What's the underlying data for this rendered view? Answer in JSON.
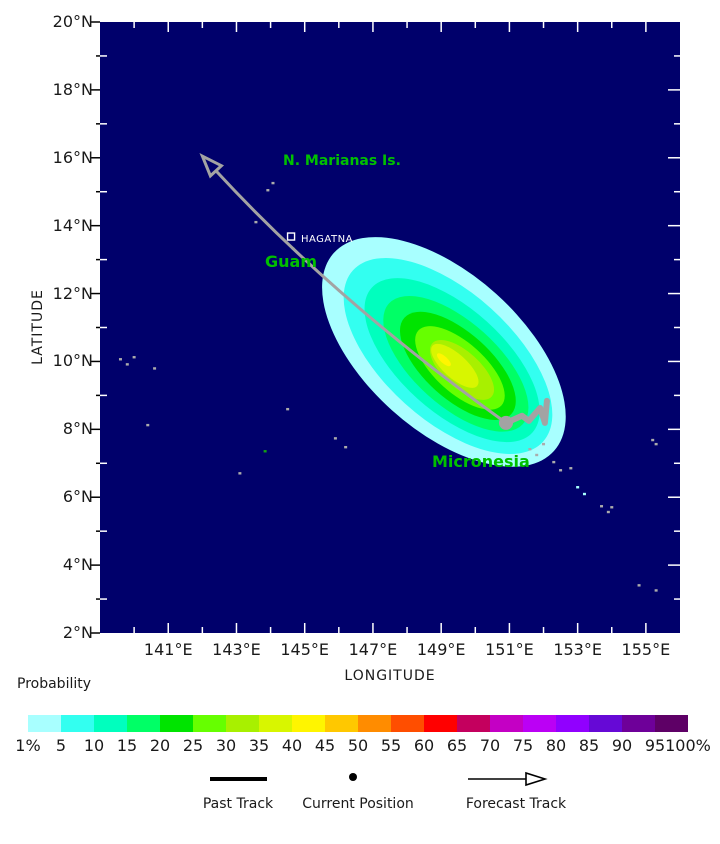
{
  "figure": {
    "background": "#FFFFFF",
    "ocean_color": "#00006B",
    "track_color": "#A3A3A3",
    "place_label_color": "#00C000"
  },
  "axes": {
    "x_label": "LONGITUDE",
    "y_label": "LATITUDE",
    "x_ticks": [
      {
        "v": 141,
        "label": "141°E"
      },
      {
        "v": 143,
        "label": "143°E"
      },
      {
        "v": 145,
        "label": "145°E"
      },
      {
        "v": 147,
        "label": "147°E"
      },
      {
        "v": 149,
        "label": "149°E"
      },
      {
        "v": 151,
        "label": "151°E"
      },
      {
        "v": 153,
        "label": "153°E"
      },
      {
        "v": 155,
        "label": "155°E"
      }
    ],
    "y_ticks": [
      {
        "v": 20,
        "label": "20°N"
      },
      {
        "v": 18,
        "label": "18°N"
      },
      {
        "v": 16,
        "label": "16°N"
      },
      {
        "v": 14,
        "label": "14°N"
      },
      {
        "v": 12,
        "label": "12°N"
      },
      {
        "v": 10,
        "label": "10°N"
      },
      {
        "v": 8,
        "label": "8°N"
      },
      {
        "v": 6,
        "label": "6°N"
      },
      {
        "v": 4,
        "label": "4°N"
      },
      {
        "v": 2,
        "label": "2°N"
      }
    ]
  },
  "map_labels": {
    "marianas": "N. Marianas Is.",
    "guam": "Guam",
    "hagatna": "HAGATNA",
    "micronesia": "Micronesia"
  },
  "colorbar": {
    "title": "Probability",
    "labels": [
      "1%",
      "5",
      "10",
      "15",
      "20",
      "25",
      "30",
      "35",
      "40",
      "45",
      "50",
      "55",
      "60",
      "65",
      "70",
      "75",
      "80",
      "85",
      "90",
      "95",
      "100%"
    ],
    "colors": [
      "#A8FFFF",
      "#33FFF0",
      "#00FFBE",
      "#00FF66",
      "#00E400",
      "#66FF00",
      "#A8F000",
      "#D8F600",
      "#FFF500",
      "#FFC800",
      "#FF8C00",
      "#FF4E00",
      "#FF0000",
      "#C4005E",
      "#C400C4",
      "#BB00F5",
      "#9100FF",
      "#6609D6",
      "#6E0099",
      "#5E0066"
    ]
  },
  "legend": {
    "past_track": "Past Track",
    "current_position": "Current Position",
    "forecast_track": "Forecast Track"
  },
  "chart_data": {
    "type": "heatmap",
    "title": "Tropical cyclone wind probability map (probability contours with past and forecast track)",
    "xlabel": "LONGITUDE",
    "ylabel": "LATITUDE",
    "x_range_deg_east": [
      139,
      156
    ],
    "y_range_deg_north": [
      2,
      20
    ],
    "x_tick_values": [
      141,
      143,
      145,
      147,
      149,
      151,
      153,
      155
    ],
    "y_tick_values": [
      20,
      18,
      16,
      14,
      12,
      10,
      8,
      6,
      4,
      2
    ],
    "grid": "off",
    "legend_position": "bottom",
    "colorbar_percent_levels": [
      1,
      5,
      10,
      15,
      20,
      25,
      30,
      35,
      40,
      45,
      50,
      55,
      60,
      65,
      70,
      75,
      80,
      85,
      90,
      95,
      100
    ],
    "probability_bands": [
      {
        "min_percent": 1,
        "color": "#A8FFFF",
        "center_lon": 149.08,
        "center_lat": 10.28,
        "semi_major_deg": 4.34,
        "semi_minor_deg": 2.29,
        "rotation_deg_cw": 42
      },
      {
        "min_percent": 5,
        "color": "#33FFF0",
        "center_lon": 149.2,
        "center_lat": 10.16,
        "semi_major_deg": 3.75,
        "semi_minor_deg": 1.88,
        "rotation_deg_cw": 42
      },
      {
        "min_percent": 10,
        "color": "#00FFBE",
        "center_lon": 149.32,
        "center_lat": 10.04,
        "semi_major_deg": 3.17,
        "semi_minor_deg": 1.52,
        "rotation_deg_cw": 42
      },
      {
        "min_percent": 15,
        "color": "#00FF66",
        "center_lon": 149.43,
        "center_lat": 9.93,
        "semi_major_deg": 2.64,
        "semi_minor_deg": 1.23,
        "rotation_deg_cw": 42
      },
      {
        "min_percent": 20,
        "color": "#00E400",
        "center_lon": 149.49,
        "center_lat": 9.87,
        "semi_major_deg": 2.11,
        "semi_minor_deg": 0.97,
        "rotation_deg_cw": 42
      },
      {
        "min_percent": 25,
        "color": "#66FF00",
        "center_lon": 149.55,
        "center_lat": 9.81,
        "semi_major_deg": 1.64,
        "semi_minor_deg": 0.73,
        "rotation_deg_cw": 42
      },
      {
        "min_percent": 30,
        "color": "#A8F000",
        "center_lon": 149.61,
        "center_lat": 9.75,
        "semi_major_deg": 1.17,
        "semi_minor_deg": 0.53,
        "rotation_deg_cw": 42
      },
      {
        "min_percent": 35,
        "color": "#D8F600",
        "center_lon": 149.4,
        "center_lat": 9.87,
        "semi_major_deg": 0.88,
        "semi_minor_deg": 0.35,
        "rotation_deg_cw": 42
      },
      {
        "min_percent": 40,
        "color": "#FFF500",
        "center_lon": 149.08,
        "center_lat": 10.05,
        "semi_major_deg": 0.26,
        "semi_minor_deg": 0.1,
        "rotation_deg_cw": 42
      }
    ],
    "past_track_lon_lat": [
      [
        152.1,
        8.84
      ],
      [
        152.04,
        8.19
      ],
      [
        151.9,
        8.63
      ],
      [
        151.57,
        8.25
      ],
      [
        151.37,
        8.4
      ],
      [
        150.9,
        8.19
      ]
    ],
    "current_position_lon_lat": [
      150.9,
      8.19
    ],
    "forecast_track": {
      "start_lon_lat": [
        150.9,
        8.19
      ],
      "control_lon_lat": [
        145.89,
        11.81
      ],
      "arrow_tip_lon_lat": [
        142.0,
        16.05
      ]
    },
    "places": [
      {
        "name": "HAGATNA",
        "marker": "open-square",
        "lon": 144.6,
        "lat": 13.68
      },
      {
        "name": "Guam",
        "lon": 144.7,
        "lat": 13.2
      },
      {
        "name": "N. Marianas Is.",
        "lon": 146.0,
        "lat": 15.9
      },
      {
        "name": "Micronesia",
        "lon": 150.0,
        "lat": 7.0
      }
    ],
    "islands_lon_lat": [
      {
        "lon": 143.92,
        "lat": 15.05,
        "c": "g"
      },
      {
        "lon": 144.07,
        "lat": 15.26,
        "c": "g"
      },
      {
        "lon": 143.57,
        "lat": 14.11,
        "c": "g"
      },
      {
        "lon": 144.66,
        "lat": 13.33,
        "c": "n"
      },
      {
        "lon": 143.84,
        "lat": 7.36,
        "c": "n"
      },
      {
        "lon": 151.6,
        "lat": 7.42,
        "c": "g"
      },
      {
        "lon": 151.8,
        "lat": 7.25,
        "c": "g"
      },
      {
        "lon": 152.0,
        "lat": 7.57,
        "c": "g"
      },
      {
        "lon": 152.3,
        "lat": 7.04,
        "c": "g"
      },
      {
        "lon": 152.5,
        "lat": 6.8,
        "c": "g"
      },
      {
        "lon": 152.8,
        "lat": 6.86,
        "c": "g"
      },
      {
        "lon": 153.7,
        "lat": 5.74,
        "c": "g"
      },
      {
        "lon": 153.9,
        "lat": 5.57,
        "c": "g"
      },
      {
        "lon": 154.0,
        "lat": 5.71,
        "c": "g"
      },
      {
        "lon": 155.2,
        "lat": 7.69,
        "c": "g"
      },
      {
        "lon": 155.3,
        "lat": 7.57,
        "c": "g"
      },
      {
        "lon": 139.6,
        "lat": 10.07,
        "c": "g"
      },
      {
        "lon": 139.8,
        "lat": 9.92,
        "c": "g"
      },
      {
        "lon": 140.0,
        "lat": 10.13,
        "c": "g"
      },
      {
        "lon": 140.6,
        "lat": 9.8,
        "c": "g"
      },
      {
        "lon": 140.4,
        "lat": 8.13,
        "c": "g"
      },
      {
        "lon": 143.1,
        "lat": 6.71,
        "c": "g"
      },
      {
        "lon": 144.5,
        "lat": 8.6,
        "c": "g"
      },
      {
        "lon": 145.9,
        "lat": 7.74,
        "c": "g"
      },
      {
        "lon": 146.2,
        "lat": 7.48,
        "c": "g"
      },
      {
        "lon": 154.8,
        "lat": 3.41,
        "c": "g"
      },
      {
        "lon": 155.3,
        "lat": 3.26,
        "c": "g"
      },
      {
        "lon": 153.0,
        "lat": 6.3,
        "c": "c"
      },
      {
        "lon": 153.2,
        "lat": 6.1,
        "c": "c"
      },
      {
        "lon": 151.0,
        "lat": 7.0,
        "c": "c"
      }
    ]
  }
}
